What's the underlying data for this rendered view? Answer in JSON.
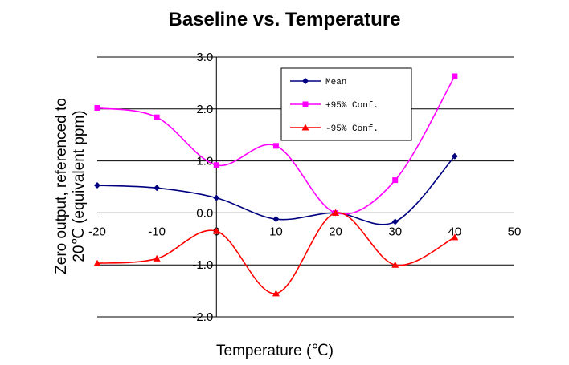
{
  "chart_data": {
    "type": "line",
    "title": "Baseline vs. Temperature",
    "xlabel": "Temperature (℃)",
    "ylabel_line1": "Zero output, referenced to",
    "ylabel_line2": "20℃ (equivalent ppm)",
    "xlim": [
      -20,
      50
    ],
    "ylim": [
      -2.0,
      3.0
    ],
    "x_ticks": [
      "-20",
      "-10",
      "0",
      "10",
      "20",
      "30",
      "40",
      "50"
    ],
    "y_ticks": [
      "3.0",
      "2.0",
      "1.0",
      "0.0",
      "-1.0",
      "-2.0"
    ],
    "x": [
      -20,
      -10,
      0,
      10,
      20,
      30,
      40
    ],
    "grid": "horizontal",
    "legend_position": "upper-middle",
    "series": [
      {
        "name": "Mean",
        "color": "#000080",
        "marker": "diamond",
        "values": [
          0.53,
          0.48,
          0.29,
          -0.12,
          0.0,
          -0.17,
          1.09
        ]
      },
      {
        "name": "+95% Conf.",
        "color": "#ff00ff",
        "marker": "square",
        "values": [
          2.02,
          1.84,
          0.92,
          1.29,
          0.0,
          0.63,
          2.63
        ]
      },
      {
        "name": "-95% Conf.",
        "color": "#ff0000",
        "marker": "triangle",
        "values": [
          -0.97,
          -0.88,
          -0.35,
          -1.55,
          0.0,
          -1.0,
          -0.47
        ]
      }
    ]
  }
}
